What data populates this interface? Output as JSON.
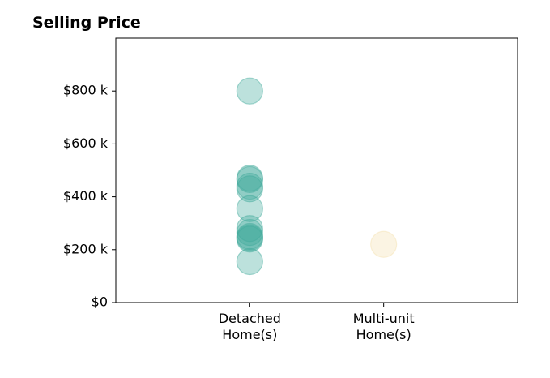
{
  "chart_data": {
    "type": "scatter",
    "title": "Selling Price",
    "xlabel": "",
    "ylabel": "",
    "categories": [
      [
        "Detached",
        "Home(s)"
      ],
      [
        "Multi-unit",
        "Home(s)"
      ]
    ],
    "xlim": [
      -1,
      2
    ],
    "ylim": [
      0,
      1000000
    ],
    "y_ticks": [
      0,
      200000,
      400000,
      600000,
      800000
    ],
    "y_tick_labels": [
      "$0",
      "$200 k",
      "$400 k",
      "$600 k",
      "$800 k"
    ],
    "grid": false,
    "series": [
      {
        "category_index": 0,
        "color": "#3fa89a",
        "values": [
          800000,
          470000,
          465000,
          440000,
          430000,
          355000,
          280000,
          265000,
          250000,
          245000,
          240000,
          155000
        ]
      },
      {
        "category_index": 1,
        "color": "#f3dfae",
        "values": [
          220000
        ]
      }
    ]
  }
}
